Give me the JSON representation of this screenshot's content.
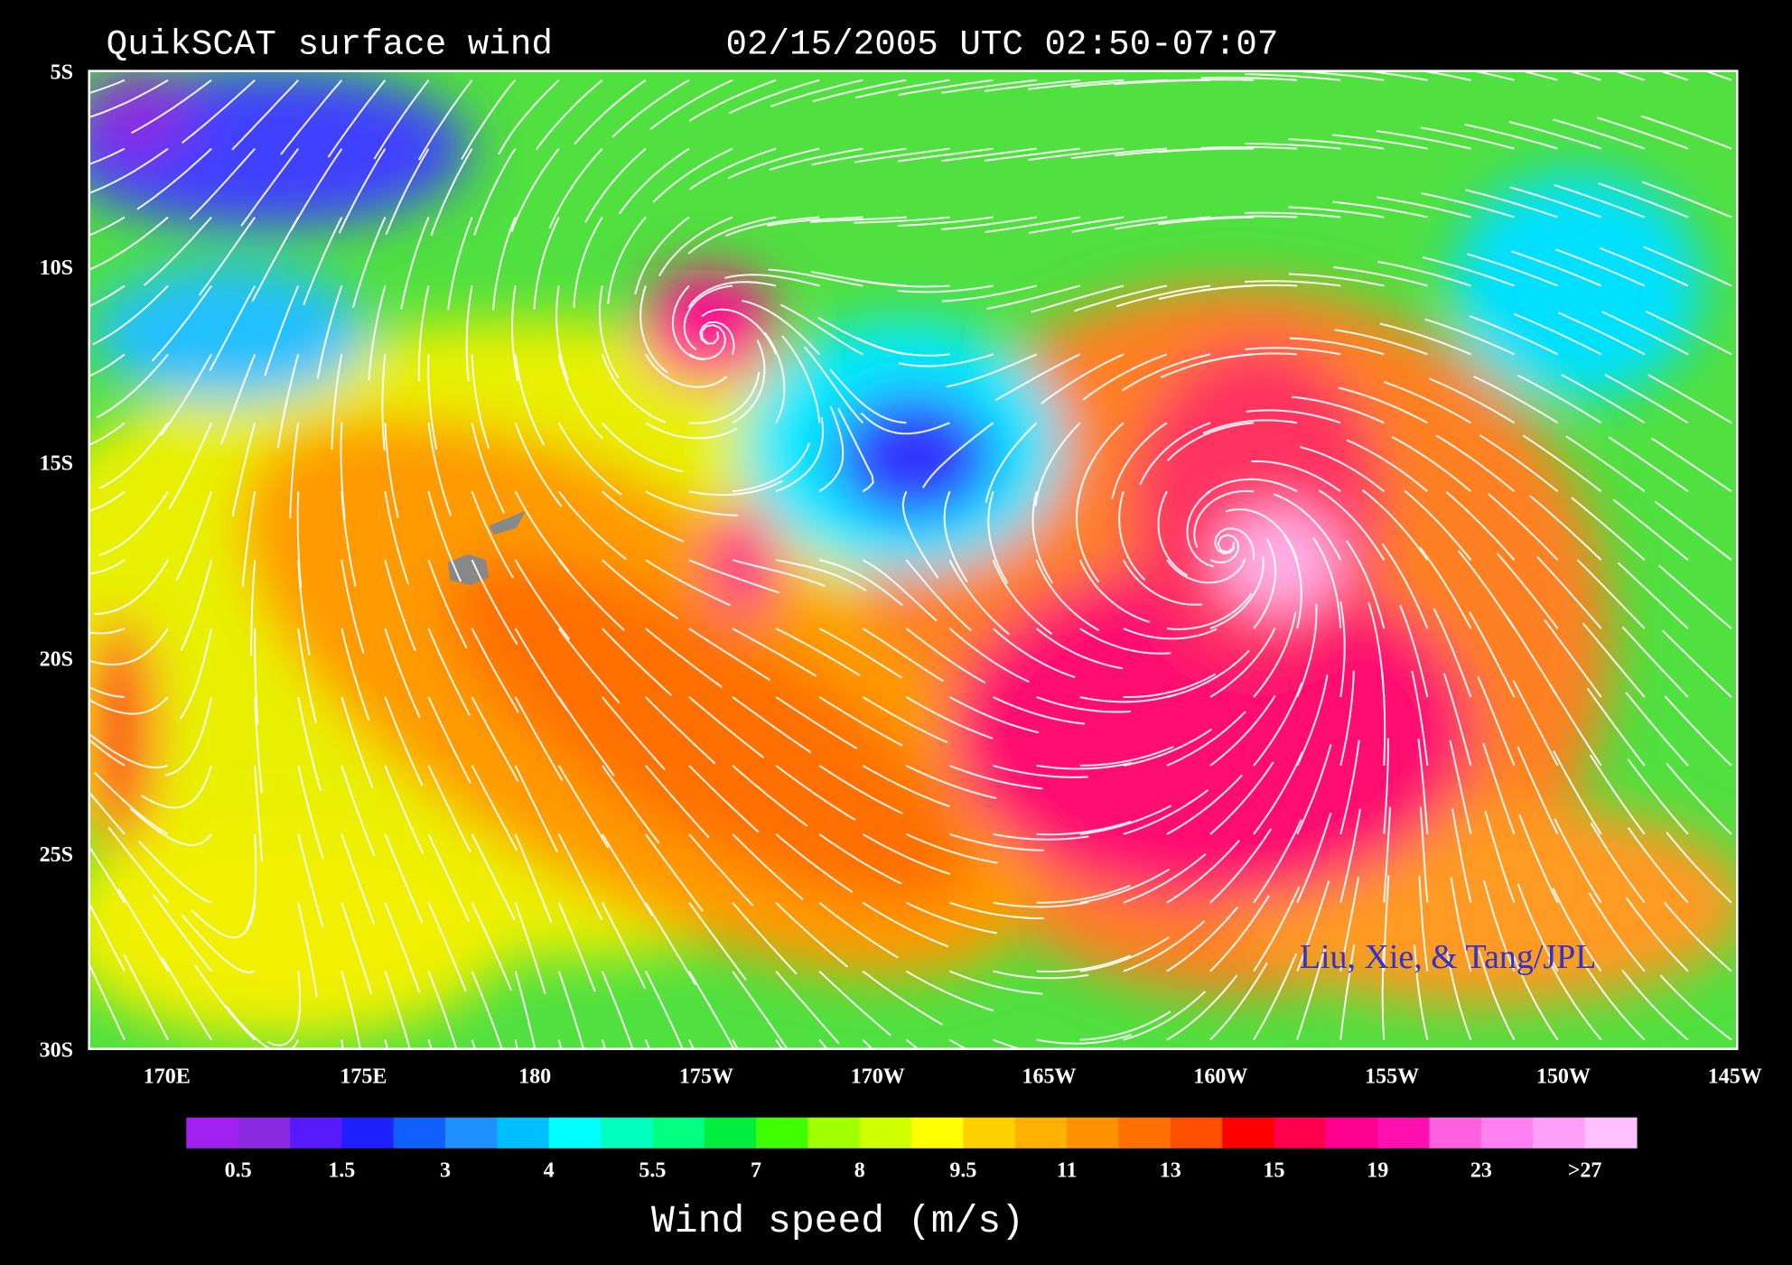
{
  "header": {
    "title": "QuikSCAT surface wind",
    "time": "02/15/2005 UTC 02:50-07:07"
  },
  "map": {
    "lat_labels": [
      "5S",
      "10S",
      "15S",
      "20S",
      "25S",
      "30S"
    ],
    "lon_labels": [
      "170E",
      "175E",
      "180",
      "175W",
      "170W",
      "165W",
      "160W",
      "155W",
      "150W",
      "145W"
    ],
    "credit": "Liu, Xie, & Tang/JPL"
  },
  "colorbar": {
    "labels": [
      "0.5",
      "1.5",
      "3",
      "4",
      "5.5",
      "7",
      "8",
      "9.5",
      "11",
      "13",
      "15",
      "19",
      "23",
      ">27"
    ],
    "colors": [
      "#a020f0",
      "#8a2be2",
      "#5a1aff",
      "#2020ff",
      "#1060ff",
      "#1e90ff",
      "#00bfff",
      "#00ffff",
      "#00ffc0",
      "#00ff80",
      "#00ee40",
      "#40ff00",
      "#a0ff00",
      "#d0ff00",
      "#ffff00",
      "#ffd000",
      "#ffb000",
      "#ff9000",
      "#ff7000",
      "#ff5000",
      "#ff0000",
      "#ff0050",
      "#ff0090",
      "#ff10b0",
      "#ff60e0",
      "#ff80f0",
      "#ffa0f8",
      "#ffc0ff"
    ],
    "title": "Wind speed (m/s)"
  }
}
